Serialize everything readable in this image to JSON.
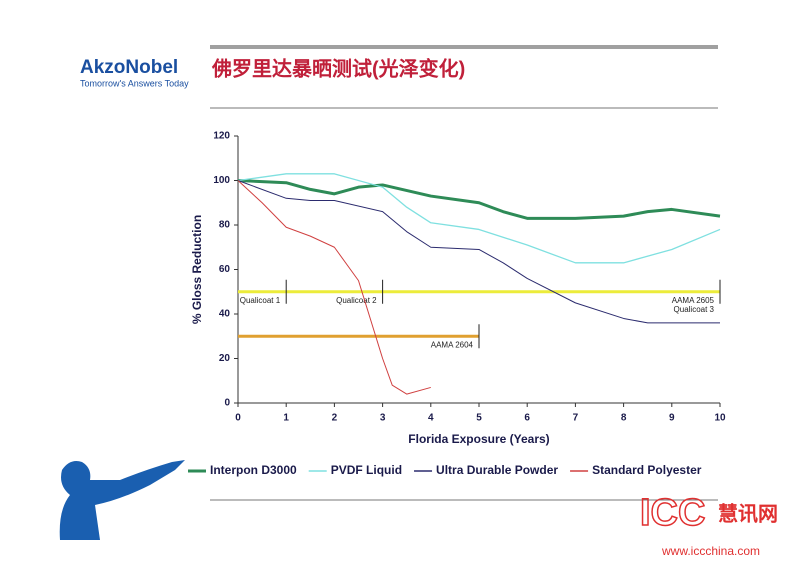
{
  "header": {
    "logo": "AkzoNobel",
    "tagline": "Tomorrow's Answers Today",
    "title": "佛罗里达暴晒测试(光泽变化)"
  },
  "chart_data": {
    "type": "line",
    "xlabel": "Florida  Exposure (Years)",
    "ylabel": "% Gloss Reduction",
    "xlim": [
      0,
      10
    ],
    "xticks": [
      0,
      1,
      2,
      3,
      4,
      5,
      6,
      7,
      8,
      9,
      10
    ],
    "ylim": [
      0,
      120
    ],
    "yticks": [
      0,
      20,
      40,
      60,
      80,
      100,
      120
    ],
    "series": [
      {
        "name": "Interpon D3000",
        "color": "#2e8b57",
        "width": 3,
        "x": [
          0,
          1,
          1.5,
          2,
          2.5,
          3,
          4,
          5,
          5.5,
          6,
          7,
          8,
          8.5,
          9,
          10
        ],
        "values": [
          100,
          99,
          96,
          94,
          97,
          98,
          93,
          90,
          86,
          83,
          83,
          84,
          86,
          87,
          84
        ]
      },
      {
        "name": "PVDF Liquid",
        "color": "#7fe0e0",
        "width": 1.3,
        "x": [
          0,
          1,
          2,
          3,
          3.5,
          4,
          5,
          6,
          7,
          8,
          9,
          10
        ],
        "values": [
          100,
          103,
          103,
          97,
          88,
          81,
          78,
          71,
          63,
          63,
          69,
          78
        ]
      },
      {
        "name": "Ultra Durable Powder",
        "color": "#2b2b6e",
        "width": 1,
        "x": [
          0,
          1,
          1.5,
          2,
          3,
          3.5,
          4,
          5,
          5.5,
          6,
          7,
          8,
          8.5,
          9,
          10
        ],
        "values": [
          100,
          92,
          91,
          91,
          86,
          77,
          70,
          69,
          63,
          56,
          45,
          38,
          36,
          36,
          36
        ]
      },
      {
        "name": "Standard Polyester",
        "color": "#d04040",
        "width": 1,
        "x": [
          0,
          0.5,
          1,
          1.5,
          2,
          2.5,
          3,
          3.2,
          3.5,
          4
        ],
        "values": [
          100,
          90,
          79,
          75,
          70,
          55,
          20,
          8,
          4,
          7
        ]
      }
    ],
    "reference_lines": [
      {
        "y": 50,
        "x_end": 10,
        "color": "#ecec3a",
        "markers": [
          {
            "x": 1,
            "label": [
              "Qualicoat 1"
            ],
            "side": "left"
          },
          {
            "x": 3,
            "label": [
              "Qualicoat 2"
            ],
            "side": "left"
          },
          {
            "x": 10,
            "label": [
              "AAMA 2605",
              "Qualicoat 3"
            ],
            "side": "left"
          }
        ]
      },
      {
        "y": 30,
        "x_end": 5,
        "color": "#e0a030",
        "markers": [
          {
            "x": 5,
            "label": [
              "AAMA 2604"
            ],
            "side": "left"
          }
        ]
      }
    ]
  },
  "watermark": {
    "brand": "ICC",
    "cn": "慧讯网",
    "url": "www.iccchina.com"
  }
}
